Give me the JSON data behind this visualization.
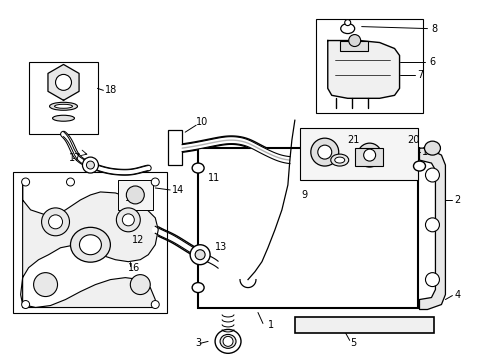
{
  "background_color": "#ffffff",
  "line_color": "#000000",
  "fig_width": 4.89,
  "fig_height": 3.6,
  "dpi": 100,
  "label_fontsize": 7.0
}
